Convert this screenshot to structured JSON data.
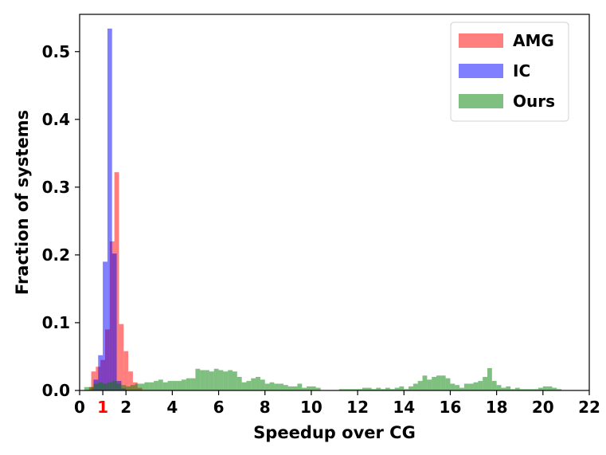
{
  "chart_data": {
    "type": "bar",
    "subtype": "histogram",
    "xlabel": "Speedup over CG",
    "ylabel": "Fraction of systems",
    "xlim": [
      0,
      22
    ],
    "ylim": [
      0,
      0.555
    ],
    "xticks": [
      0,
      1,
      2,
      4,
      6,
      8,
      10,
      12,
      14,
      16,
      18,
      20,
      22
    ],
    "xtick_labels": [
      "0",
      "1",
      "2",
      "4",
      "6",
      "8",
      "10",
      "12",
      "14",
      "16",
      "18",
      "20",
      "22"
    ],
    "highlight_tick": {
      "label": "1",
      "color": "#ff0000"
    },
    "yticks": [
      0.0,
      0.1,
      0.2,
      0.3,
      0.4,
      0.5
    ],
    "ytick_labels": [
      "0.0",
      "0.1",
      "0.2",
      "0.3",
      "0.4",
      "0.5"
    ],
    "legend_position": "top-right",
    "grid": false,
    "series": [
      {
        "name": "AMG",
        "color": "#ff0000",
        "opacity": 0.5,
        "bin_width": 0.2,
        "bins": [
          [
            0.4,
            0.005
          ],
          [
            0.5,
            0.028
          ],
          [
            0.7,
            0.035
          ],
          [
            0.9,
            0.045
          ],
          [
            1.1,
            0.09
          ],
          [
            1.3,
            0.22
          ],
          [
            1.5,
            0.322
          ],
          [
            1.7,
            0.098
          ],
          [
            1.9,
            0.058
          ],
          [
            2.1,
            0.028
          ],
          [
            2.3,
            0.012
          ],
          [
            2.5,
            0.004
          ]
        ]
      },
      {
        "name": "IC",
        "color": "#0000ff",
        "opacity": 0.5,
        "bin_width": 0.2,
        "bins": [
          [
            0.6,
            0.016
          ],
          [
            0.8,
            0.052
          ],
          [
            1.0,
            0.19
          ],
          [
            1.2,
            0.534
          ],
          [
            1.4,
            0.202
          ],
          [
            1.6,
            0.014
          ],
          [
            1.8,
            0.003
          ]
        ]
      },
      {
        "name": "Ours",
        "color": "#008000",
        "opacity": 0.5,
        "bin_width": 0.2,
        "bins": [
          [
            0.2,
            0.005
          ],
          [
            0.4,
            0.005
          ],
          [
            0.6,
            0.01
          ],
          [
            0.8,
            0.012
          ],
          [
            1.0,
            0.01
          ],
          [
            1.2,
            0.012
          ],
          [
            1.4,
            0.014
          ],
          [
            1.6,
            0.01
          ],
          [
            1.8,
            0.008
          ],
          [
            2.0,
            0.006
          ],
          [
            2.2,
            0.008
          ],
          [
            2.4,
            0.01
          ],
          [
            2.6,
            0.01
          ],
          [
            2.8,
            0.012
          ],
          [
            3.0,
            0.012
          ],
          [
            3.2,
            0.014
          ],
          [
            3.4,
            0.016
          ],
          [
            3.6,
            0.012
          ],
          [
            3.8,
            0.014
          ],
          [
            4.0,
            0.014
          ],
          [
            4.2,
            0.014
          ],
          [
            4.4,
            0.016
          ],
          [
            4.6,
            0.018
          ],
          [
            4.8,
            0.018
          ],
          [
            5.0,
            0.032
          ],
          [
            5.2,
            0.03
          ],
          [
            5.4,
            0.03
          ],
          [
            5.6,
            0.028
          ],
          [
            5.8,
            0.032
          ],
          [
            6.0,
            0.03
          ],
          [
            6.2,
            0.028
          ],
          [
            6.4,
            0.03
          ],
          [
            6.6,
            0.028
          ],
          [
            6.8,
            0.02
          ],
          [
            7.0,
            0.012
          ],
          [
            7.2,
            0.014
          ],
          [
            7.4,
            0.018
          ],
          [
            7.6,
            0.02
          ],
          [
            7.8,
            0.016
          ],
          [
            8.0,
            0.01
          ],
          [
            8.2,
            0.012
          ],
          [
            8.4,
            0.01
          ],
          [
            8.6,
            0.01
          ],
          [
            8.8,
            0.008
          ],
          [
            9.0,
            0.006
          ],
          [
            9.2,
            0.006
          ],
          [
            9.4,
            0.01
          ],
          [
            9.6,
            0.004
          ],
          [
            9.8,
            0.006
          ],
          [
            10.0,
            0.006
          ],
          [
            10.2,
            0.004
          ],
          [
            11.2,
            0.002
          ],
          [
            11.4,
            0.002
          ],
          [
            11.6,
            0.002
          ],
          [
            11.8,
            0.002
          ],
          [
            12.0,
            0.002
          ],
          [
            12.2,
            0.004
          ],
          [
            12.4,
            0.004
          ],
          [
            12.6,
            0.002
          ],
          [
            12.8,
            0.004
          ],
          [
            13.0,
            0.002
          ],
          [
            13.2,
            0.004
          ],
          [
            13.4,
            0.002
          ],
          [
            13.6,
            0.004
          ],
          [
            13.8,
            0.006
          ],
          [
            14.0,
            0.002
          ],
          [
            14.2,
            0.006
          ],
          [
            14.4,
            0.01
          ],
          [
            14.6,
            0.014
          ],
          [
            14.8,
            0.022
          ],
          [
            15.0,
            0.016
          ],
          [
            15.2,
            0.02
          ],
          [
            15.4,
            0.022
          ],
          [
            15.6,
            0.022
          ],
          [
            15.8,
            0.018
          ],
          [
            16.0,
            0.01
          ],
          [
            16.2,
            0.008
          ],
          [
            16.4,
            0.004
          ],
          [
            16.6,
            0.01
          ],
          [
            16.8,
            0.01
          ],
          [
            17.0,
            0.012
          ],
          [
            17.2,
            0.014
          ],
          [
            17.4,
            0.02
          ],
          [
            17.6,
            0.033
          ],
          [
            17.8,
            0.014
          ],
          [
            18.0,
            0.008
          ],
          [
            18.2,
            0.004
          ],
          [
            18.4,
            0.006
          ],
          [
            18.6,
            0.002
          ],
          [
            18.8,
            0.004
          ],
          [
            19.0,
            0.002
          ],
          [
            19.2,
            0.002
          ],
          [
            19.4,
            0.002
          ],
          [
            19.6,
            0.002
          ],
          [
            19.8,
            0.004
          ],
          [
            20.0,
            0.006
          ],
          [
            20.2,
            0.006
          ],
          [
            20.4,
            0.004
          ],
          [
            20.6,
            0.002
          ]
        ]
      }
    ]
  }
}
